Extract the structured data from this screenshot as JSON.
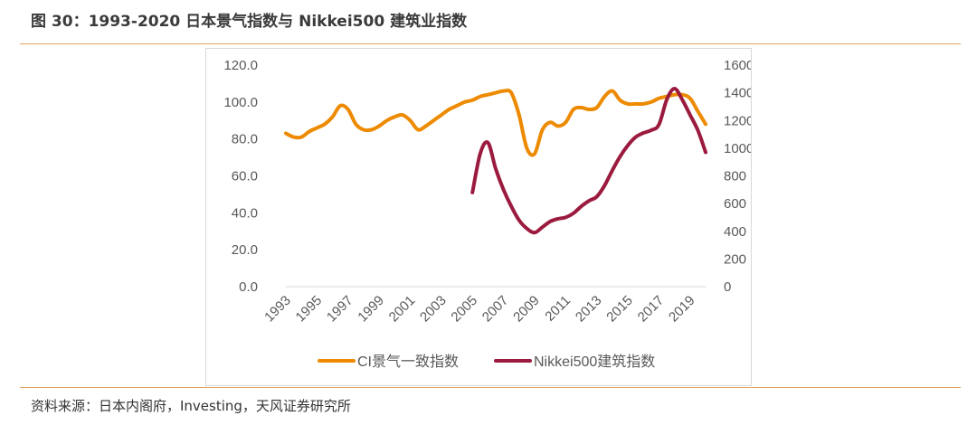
{
  "title": "图 30：1993-2020 日本景气指数与 Nikkei500 建筑业指数",
  "source": "资料来源：日本内阁府，Investing，天风证券研究所",
  "chart_data": {
    "type": "line",
    "x_tick_labels": [
      "1993",
      "1995",
      "1997",
      "1999",
      "2001",
      "2003",
      "2005",
      "2007",
      "2009",
      "2011",
      "2013",
      "2015",
      "2017",
      "2019"
    ],
    "y_left": {
      "ticks": [
        "0.0",
        "20.0",
        "40.0",
        "60.0",
        "80.0",
        "100.0",
        "120.0"
      ],
      "lim": [
        0,
        120
      ]
    },
    "y_right": {
      "ticks": [
        "0",
        "200",
        "400",
        "600",
        "800",
        "1000",
        "1200",
        "1400",
        "1600"
      ],
      "lim": [
        0,
        1600
      ]
    },
    "grid": false,
    "legend_position": "bottom",
    "series": [
      {
        "name": "CI景气一致指数",
        "axis": "left",
        "color": "#ED8A00",
        "points": [
          [
            1993.0,
            83
          ],
          [
            1993.5,
            81
          ],
          [
            1994.0,
            81
          ],
          [
            1994.5,
            84
          ],
          [
            1995.0,
            86
          ],
          [
            1995.5,
            88
          ],
          [
            1996.0,
            92
          ],
          [
            1996.5,
            98
          ],
          [
            1997.0,
            96
          ],
          [
            1997.5,
            88
          ],
          [
            1998.0,
            85
          ],
          [
            1998.5,
            85
          ],
          [
            1999.0,
            87
          ],
          [
            1999.5,
            90
          ],
          [
            2000.0,
            92
          ],
          [
            2000.5,
            93
          ],
          [
            2001.0,
            90
          ],
          [
            2001.5,
            85
          ],
          [
            2002.0,
            87
          ],
          [
            2002.5,
            90
          ],
          [
            2003.0,
            93
          ],
          [
            2003.5,
            96
          ],
          [
            2004.0,
            98
          ],
          [
            2004.5,
            100
          ],
          [
            2005.0,
            101
          ],
          [
            2005.5,
            103
          ],
          [
            2006.0,
            104
          ],
          [
            2006.5,
            105
          ],
          [
            2007.0,
            106
          ],
          [
            2007.5,
            105
          ],
          [
            2008.0,
            93
          ],
          [
            2008.5,
            75
          ],
          [
            2009.0,
            72
          ],
          [
            2009.5,
            85
          ],
          [
            2010.0,
            89
          ],
          [
            2010.5,
            87
          ],
          [
            2011.0,
            89
          ],
          [
            2011.5,
            96
          ],
          [
            2012.0,
            97
          ],
          [
            2012.5,
            96
          ],
          [
            2013.0,
            97
          ],
          [
            2013.5,
            103
          ],
          [
            2014.0,
            106
          ],
          [
            2014.5,
            101
          ],
          [
            2015.0,
            99
          ],
          [
            2015.5,
            99
          ],
          [
            2016.0,
            99
          ],
          [
            2016.5,
            100
          ],
          [
            2017.0,
            102
          ],
          [
            2017.5,
            103
          ],
          [
            2018.0,
            104
          ],
          [
            2018.5,
            104
          ],
          [
            2019.0,
            102
          ],
          [
            2019.5,
            95
          ],
          [
            2020.0,
            88
          ]
        ]
      },
      {
        "name": "Nikkei500建筑指数",
        "axis": "right",
        "color": "#9B1B3E",
        "points": [
          [
            2005.0,
            680
          ],
          [
            2005.5,
            960
          ],
          [
            2006.0,
            1040
          ],
          [
            2006.5,
            850
          ],
          [
            2007.0,
            700
          ],
          [
            2007.5,
            580
          ],
          [
            2008.0,
            480
          ],
          [
            2008.5,
            420
          ],
          [
            2009.0,
            390
          ],
          [
            2009.5,
            430
          ],
          [
            2010.0,
            470
          ],
          [
            2010.5,
            490
          ],
          [
            2011.0,
            500
          ],
          [
            2011.5,
            530
          ],
          [
            2012.0,
            580
          ],
          [
            2012.5,
            620
          ],
          [
            2013.0,
            650
          ],
          [
            2013.5,
            730
          ],
          [
            2014.0,
            840
          ],
          [
            2014.5,
            940
          ],
          [
            2015.0,
            1020
          ],
          [
            2015.5,
            1080
          ],
          [
            2016.0,
            1110
          ],
          [
            2016.5,
            1130
          ],
          [
            2017.0,
            1170
          ],
          [
            2017.5,
            1350
          ],
          [
            2018.0,
            1430
          ],
          [
            2018.5,
            1350
          ],
          [
            2019.0,
            1240
          ],
          [
            2019.5,
            1130
          ],
          [
            2020.0,
            970
          ]
        ]
      }
    ]
  }
}
